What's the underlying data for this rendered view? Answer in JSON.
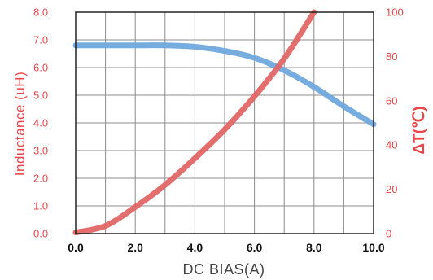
{
  "chart_data": {
    "type": "line",
    "xlabel": "DC BIAS(A)",
    "ylabel": "Inductance (uH)",
    "ylabel_right": "ΔT(℃)",
    "xlim": [
      0,
      10
    ],
    "ylim": [
      0,
      8
    ],
    "ylim_right": [
      0,
      100
    ],
    "x_ticks": [
      "0.0",
      "2.0",
      "4.0",
      "6.0",
      "8.0",
      "10.0"
    ],
    "y_ticks": [
      "0.0",
      "1.0",
      "2.0",
      "3.0",
      "4.0",
      "5.0",
      "6.0",
      "7.0",
      "8.0"
    ],
    "y_ticks_right": [
      "0",
      "20",
      "40",
      "60",
      "80",
      "100"
    ],
    "grid": true,
    "colors": {
      "inductance": "#6fa8dc",
      "temperature": "#e06666",
      "axis_text": "#e8464a"
    },
    "series": [
      {
        "axis": "left",
        "x": [
          0,
          1,
          2,
          3,
          4,
          5,
          6,
          7,
          8,
          9,
          10
        ],
        "values": [
          6.8,
          6.8,
          6.8,
          6.8,
          6.75,
          6.6,
          6.35,
          5.9,
          5.3,
          4.6,
          3.95
        ]
      },
      {
        "axis": "right",
        "x": [
          0,
          1,
          2,
          3,
          4,
          5,
          6,
          7,
          8
        ],
        "values": [
          0.5,
          3.5,
          12,
          22,
          34,
          47,
          62,
          79,
          100
        ]
      }
    ]
  }
}
